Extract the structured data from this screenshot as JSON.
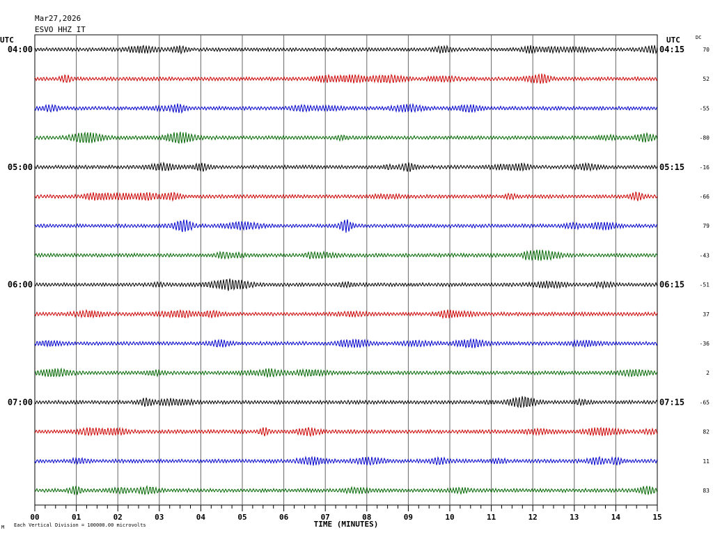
{
  "header": {
    "date": "Mar27,2026",
    "station": "ESVO HHZ IT",
    "utc_left": "UTC",
    "utc_right": "UTC",
    "dc_label": "DC"
  },
  "footer": {
    "scale_note": "Each Vertical Division = 100000.00 microvolts",
    "corner_mark": "M"
  },
  "colors": {
    "cycle": [
      "#000000",
      "#cc0000",
      "#0000cc",
      "#006600"
    ],
    "grid": "#666666"
  },
  "chart_data": {
    "type": "line",
    "title": "",
    "xlabel": "TIME (MINUTES)",
    "ylabel": "",
    "x_ticks": [
      "00",
      "01",
      "02",
      "03",
      "04",
      "05",
      "06",
      "07",
      "08",
      "09",
      "10",
      "11",
      "12",
      "13",
      "14",
      "15"
    ],
    "xlim": [
      0,
      15
    ],
    "minor_ticks_per_minute": 4,
    "grid": true,
    "traces": [
      {
        "left": "04:00",
        "right": "04:15",
        "dc": "70"
      },
      {
        "left": "",
        "right": "",
        "dc": "52"
      },
      {
        "left": "",
        "right": "",
        "dc": "-55"
      },
      {
        "left": "",
        "right": "",
        "dc": "-80"
      },
      {
        "left": "05:00",
        "right": "05:15",
        "dc": "-16"
      },
      {
        "left": "",
        "right": "",
        "dc": "-66"
      },
      {
        "left": "",
        "right": "",
        "dc": "79"
      },
      {
        "left": "",
        "right": "",
        "dc": "-43"
      },
      {
        "left": "06:00",
        "right": "06:15",
        "dc": "-51"
      },
      {
        "left": "",
        "right": "",
        "dc": "37"
      },
      {
        "left": "",
        "right": "",
        "dc": "-36"
      },
      {
        "left": "",
        "right": "",
        "dc": "2"
      },
      {
        "left": "07:00",
        "right": "07:15",
        "dc": "-65"
      },
      {
        "left": "",
        "right": "",
        "dc": "82"
      },
      {
        "left": "",
        "right": "",
        "dc": "11"
      },
      {
        "left": "",
        "right": "",
        "dc": "83"
      }
    ]
  }
}
